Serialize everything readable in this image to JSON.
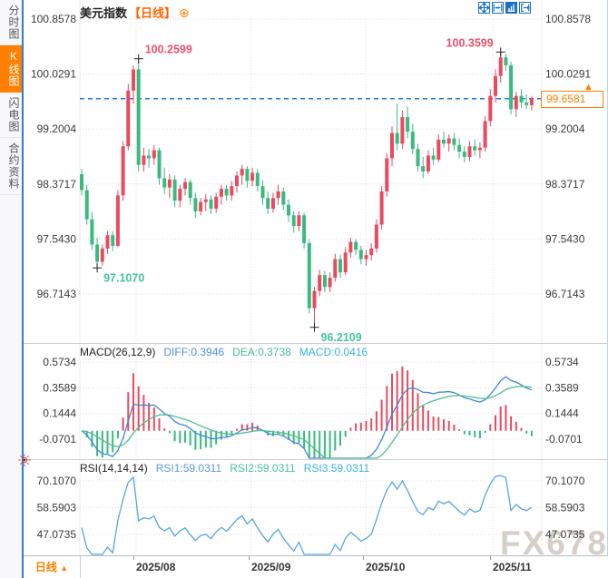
{
  "header": {
    "title": "美元指数",
    "period_tag": "【日线】",
    "add_icon": "⊕"
  },
  "sidebar": {
    "items": [
      {
        "label": "分时图",
        "active": false
      },
      {
        "label": "K线图",
        "active": true
      },
      {
        "label": "闪电图",
        "active": false
      },
      {
        "label": "合约资料",
        "active": false
      }
    ]
  },
  "toolbar": {
    "icons": [
      "crosshair-move",
      "zoom-horizontal",
      "zoom-vertical",
      "exit-chart"
    ]
  },
  "macd": {
    "name": "MACD(26,12,9)",
    "diff_label": "DIFF:0.3946",
    "dea_label": "DEA:0.3738",
    "macd_label": "MACD:0.0416"
  },
  "rsi": {
    "name": "RSI(14,14,14)",
    "rsi1_label": "RSI1:59.0311",
    "rsi2_label": "RSI2:59.0311",
    "rsi3_label": "RSI3:59.0311"
  },
  "last_price": {
    "value": "99.6581",
    "arrow": "▲"
  },
  "timeline": {
    "period_label": "日线",
    "arrow": "▲",
    "x_labels": [
      "2025/08",
      "2025/09",
      "2025/10",
      "2025/11"
    ]
  },
  "watermark": "FX678",
  "colors": {
    "up": "#ea4a5f",
    "down": "#3aba80",
    "ann_high": "#ef506b",
    "ann_low": "#45c49c",
    "diff_line": "#3f87d9",
    "dea_line": "#4fbd8c",
    "rsi_line": "#55a6dc",
    "dashed_price": "#1c79e3",
    "accent_orange": "#ff8000",
    "icon_blue": "#1a6fc7",
    "grid": "#dcdce2"
  },
  "chart_data": {
    "type": "candlestick",
    "title": "美元指数",
    "interval": "日线",
    "y_tick_labels": [
      "100.8578",
      "100.0291",
      "99.2004",
      "98.3717",
      "97.5430",
      "96.7143"
    ],
    "y_axis_range": [
      96.7143,
      100.8578
    ],
    "x_labels": [
      "2025/08",
      "2025/09",
      "2025/10",
      "2025/11"
    ],
    "last_price": 99.6581,
    "annotations": [
      {
        "index": 11,
        "value": 100.2599,
        "label": "100.2599",
        "kind": "high",
        "side": "right"
      },
      {
        "index": 81,
        "value": 100.3599,
        "label": "100.3599",
        "kind": "high",
        "side": "left"
      },
      {
        "index": 3,
        "value": 97.107,
        "label": "97.1070",
        "kind": "low",
        "side": "right"
      },
      {
        "index": 45,
        "value": 96.2109,
        "label": "96.2109",
        "kind": "low",
        "side": "right"
      }
    ],
    "candles_ohlc": [
      [
        98.52,
        98.6,
        98.2,
        98.28
      ],
      [
        98.28,
        98.36,
        97.76,
        97.84
      ],
      [
        97.84,
        97.95,
        97.38,
        97.46
      ],
      [
        97.46,
        97.56,
        97.107,
        97.2
      ],
      [
        97.2,
        97.46,
        97.14,
        97.4
      ],
      [
        97.4,
        97.66,
        97.32,
        97.6
      ],
      [
        97.6,
        97.66,
        97.36,
        97.44
      ],
      [
        97.44,
        98.28,
        97.42,
        98.2
      ],
      [
        98.2,
        99.02,
        98.12,
        98.94
      ],
      [
        98.94,
        99.88,
        98.88,
        99.78
      ],
      [
        99.78,
        100.16,
        99.58,
        100.1
      ],
      [
        100.1,
        100.2599,
        98.56,
        98.66
      ],
      [
        98.66,
        98.92,
        98.56,
        98.8
      ],
      [
        98.8,
        98.9,
        98.62,
        98.76
      ],
      [
        98.76,
        98.96,
        98.66,
        98.88
      ],
      [
        98.88,
        98.92,
        98.36,
        98.46
      ],
      [
        98.46,
        98.62,
        98.22,
        98.32
      ],
      [
        98.32,
        98.52,
        98.16,
        98.44
      ],
      [
        98.44,
        98.5,
        98.02,
        98.12
      ],
      [
        98.12,
        98.36,
        98.02,
        98.3
      ],
      [
        98.3,
        98.46,
        98.2,
        98.4
      ],
      [
        98.4,
        98.44,
        98.06,
        98.16
      ],
      [
        98.16,
        98.24,
        97.86,
        97.96
      ],
      [
        97.96,
        98.16,
        97.9,
        98.1
      ],
      [
        98.1,
        98.22,
        97.96,
        98.14
      ],
      [
        98.14,
        98.2,
        97.92,
        98.0
      ],
      [
        98.0,
        98.24,
        97.94,
        98.18
      ],
      [
        98.18,
        98.36,
        98.06,
        98.3
      ],
      [
        98.3,
        98.36,
        98.12,
        98.2
      ],
      [
        98.2,
        98.42,
        98.12,
        98.34
      ],
      [
        98.34,
        98.56,
        98.24,
        98.5
      ],
      [
        98.5,
        98.66,
        98.36,
        98.6
      ],
      [
        98.6,
        98.64,
        98.32,
        98.42
      ],
      [
        98.42,
        98.62,
        98.34,
        98.54
      ],
      [
        98.54,
        98.6,
        98.26,
        98.34
      ],
      [
        98.34,
        98.42,
        98.06,
        98.16
      ],
      [
        98.16,
        98.26,
        97.92,
        98.0
      ],
      [
        98.0,
        98.24,
        97.94,
        98.16
      ],
      [
        98.16,
        98.36,
        98.06,
        98.26
      ],
      [
        98.26,
        98.32,
        97.98,
        98.06
      ],
      [
        98.06,
        98.14,
        97.8,
        97.9
      ],
      [
        97.9,
        97.96,
        97.64,
        97.74
      ],
      [
        97.74,
        97.96,
        97.66,
        97.9
      ],
      [
        97.9,
        97.94,
        97.4,
        97.48
      ],
      [
        97.48,
        97.54,
        96.42,
        96.5
      ],
      [
        96.5,
        96.82,
        96.2109,
        96.76
      ],
      [
        96.76,
        97.08,
        96.68,
        97.0
      ],
      [
        97.0,
        97.06,
        96.74,
        96.82
      ],
      [
        96.82,
        97.04,
        96.74,
        96.96
      ],
      [
        96.96,
        97.32,
        96.9,
        97.24
      ],
      [
        97.24,
        97.3,
        96.96,
        97.04
      ],
      [
        97.04,
        97.42,
        97.0,
        97.34
      ],
      [
        97.34,
        97.56,
        97.26,
        97.5
      ],
      [
        97.5,
        97.54,
        97.3,
        97.38
      ],
      [
        97.38,
        97.44,
        97.16,
        97.24
      ],
      [
        97.24,
        97.38,
        97.14,
        97.3
      ],
      [
        97.3,
        97.48,
        97.22,
        97.4
      ],
      [
        97.4,
        97.84,
        97.34,
        97.76
      ],
      [
        97.76,
        98.34,
        97.68,
        98.26
      ],
      [
        98.26,
        98.84,
        98.18,
        98.76
      ],
      [
        98.76,
        99.24,
        98.64,
        99.14
      ],
      [
        99.14,
        99.58,
        98.88,
        98.98
      ],
      [
        98.98,
        99.48,
        98.9,
        99.38
      ],
      [
        99.38,
        99.54,
        99.06,
        99.16
      ],
      [
        99.16,
        99.28,
        98.82,
        98.9
      ],
      [
        98.9,
        98.98,
        98.56,
        98.64
      ],
      [
        98.64,
        98.78,
        98.46,
        98.56
      ],
      [
        98.56,
        98.88,
        98.52,
        98.8
      ],
      [
        98.8,
        98.92,
        98.66,
        98.74
      ],
      [
        98.74,
        99.12,
        98.7,
        99.04
      ],
      [
        99.04,
        99.16,
        98.92,
        98.98
      ],
      [
        98.98,
        99.12,
        98.86,
        99.06
      ],
      [
        99.06,
        99.14,
        98.88,
        98.96
      ],
      [
        98.96,
        99.06,
        98.76,
        98.86
      ],
      [
        98.86,
        98.94,
        98.7,
        98.78
      ],
      [
        98.78,
        99.02,
        98.72,
        98.94
      ],
      [
        98.94,
        99.04,
        98.8,
        98.88
      ],
      [
        98.88,
        99.0,
        98.76,
        98.92
      ],
      [
        98.92,
        99.4,
        98.86,
        99.32
      ],
      [
        99.32,
        99.8,
        99.24,
        99.7
      ],
      [
        99.7,
        100.1,
        99.6,
        100.0
      ],
      [
        100.0,
        100.3599,
        99.9,
        100.28
      ],
      [
        100.28,
        100.33,
        100.08,
        100.16
      ],
      [
        100.16,
        100.22,
        99.42,
        99.5
      ],
      [
        99.5,
        99.76,
        99.38,
        99.7
      ],
      [
        99.7,
        99.8,
        99.52,
        99.6
      ],
      [
        99.6,
        99.72,
        99.5,
        99.56
      ],
      [
        99.56,
        99.7,
        99.48,
        99.6581
      ]
    ],
    "indicators": {
      "macd": {
        "params": [
          26,
          12,
          9
        ],
        "diff": 0.3946,
        "dea": 0.3738,
        "macd": 0.0416,
        "y_tick_labels": [
          "0.5734",
          "0.3589",
          "0.1444",
          "-0.0701"
        ]
      },
      "rsi": {
        "params": [
          14,
          14,
          14
        ],
        "rsi1": 59.0311,
        "rsi2": 59.0311,
        "rsi3": 59.0311,
        "y_tick_labels": [
          "70.1070",
          "58.5903",
          "47.0735"
        ]
      }
    }
  }
}
